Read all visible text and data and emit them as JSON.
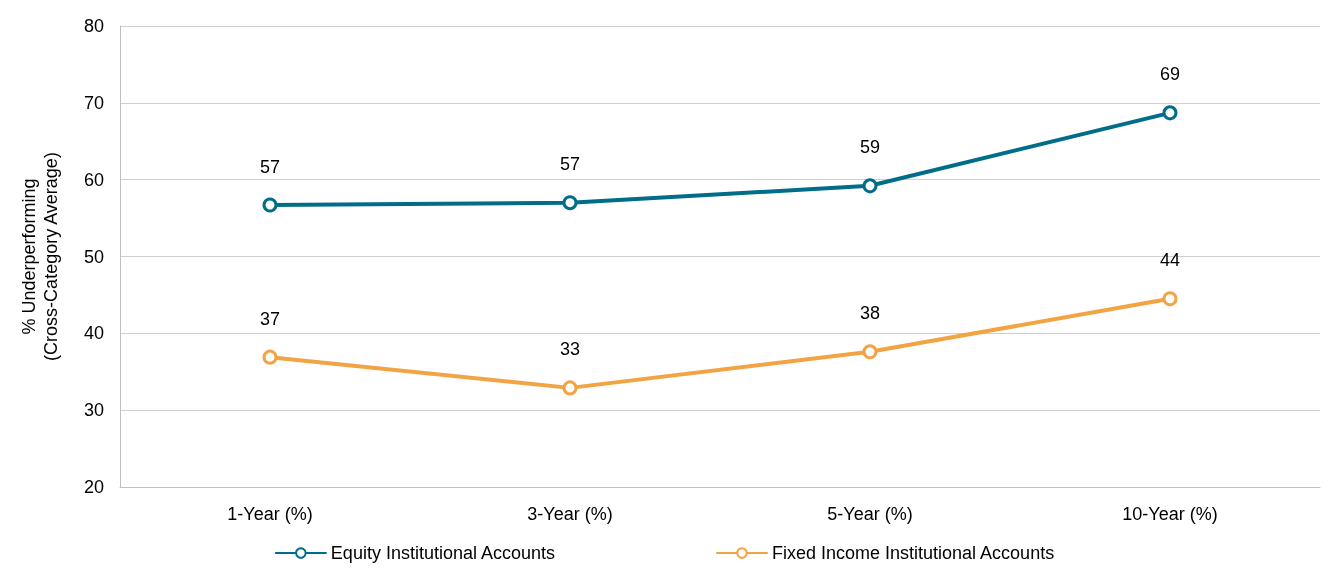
{
  "chart_data": {
    "type": "line",
    "ylabel": "% Underperforming\n(Cross-Category Average)",
    "categories": [
      "1-Year (%)",
      "3-Year (%)",
      "5-Year (%)",
      "10-Year (%)"
    ],
    "series": [
      {
        "name": "Equity Institutional Accounts",
        "color": "#006e89",
        "values": [
          56.7,
          57.0,
          59.2,
          68.7
        ],
        "value_labels": [
          "57",
          "57",
          "59",
          "69"
        ]
      },
      {
        "name": "Fixed Income Institutional Accounts",
        "color": "#f2a444",
        "values": [
          36.9,
          32.9,
          37.6,
          44.5
        ],
        "value_labels": [
          "37",
          "33",
          "38",
          "44"
        ]
      }
    ],
    "ylim": [
      20,
      80
    ],
    "yticks": [
      20,
      30,
      40,
      50,
      60,
      70,
      80
    ],
    "grid": "y",
    "legend": "bottom",
    "marker": "circle",
    "line_style": "solid"
  }
}
